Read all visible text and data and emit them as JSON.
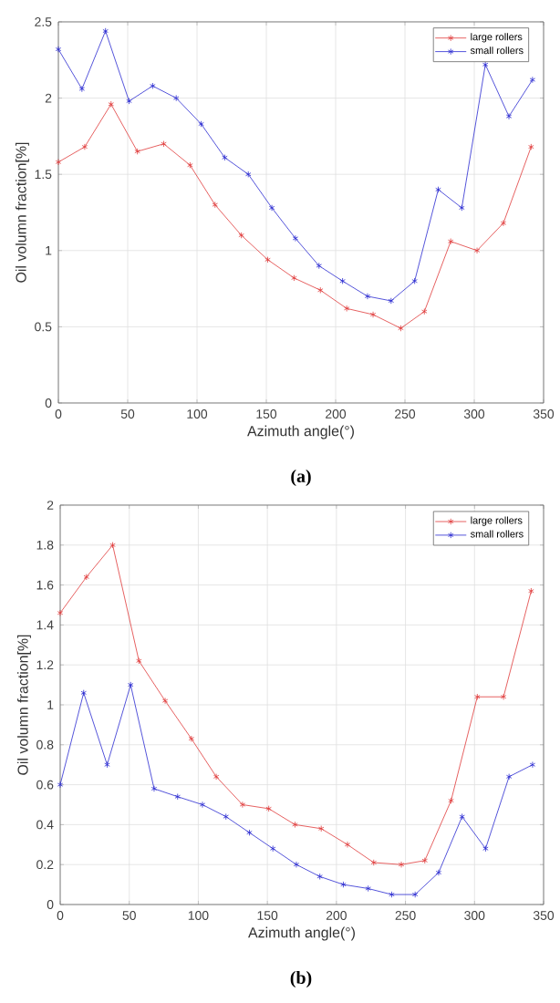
{
  "chart_data": [
    {
      "type": "line",
      "xlabel": "Azimuth angle(°)",
      "ylabel": "Oil volumn fraction[%]",
      "annotations": [
        "(a)"
      ],
      "xlim": [
        0,
        350
      ],
      "ylim": [
        0,
        2.5
      ],
      "xticks": [
        0,
        50,
        100,
        150,
        200,
        250,
        300,
        350
      ],
      "yticks": [
        0,
        0.5,
        1,
        1.5,
        2,
        2.5
      ],
      "grid": true,
      "legend": "top right",
      "marker": "cross",
      "line_style": "solid",
      "series": [
        {
          "name": "large rollers",
          "color": "#e03a3a",
          "x": [
            0,
            19,
            38,
            57,
            76,
            95,
            113,
            132,
            151,
            170,
            189,
            208,
            227,
            247,
            264,
            283,
            302,
            321,
            341
          ],
          "values": [
            1.58,
            1.68,
            1.96,
            1.65,
            1.7,
            1.56,
            1.3,
            1.1,
            0.94,
            0.82,
            0.74,
            0.62,
            0.58,
            0.49,
            0.6,
            1.06,
            1.0,
            1.18,
            1.68
          ]
        },
        {
          "name": "small rollers",
          "color": "#2a2ad0",
          "x": [
            0,
            17,
            34,
            51,
            68,
            85,
            103,
            120,
            137,
            154,
            171,
            188,
            205,
            223,
            240,
            257,
            274,
            291,
            308,
            325,
            342
          ],
          "values": [
            2.32,
            2.06,
            2.44,
            1.98,
            2.08,
            2.0,
            1.83,
            1.61,
            1.5,
            1.28,
            1.08,
            0.9,
            0.8,
            0.7,
            0.67,
            0.8,
            1.4,
            1.28,
            2.22,
            1.88,
            2.12
          ]
        }
      ]
    },
    {
      "type": "line",
      "xlabel": "Azimuth angle(°)",
      "ylabel": "Oil volumn fraction[%]",
      "annotations": [
        "(b)"
      ],
      "xlim": [
        0,
        350
      ],
      "ylim": [
        0,
        2
      ],
      "xticks": [
        0,
        50,
        100,
        150,
        200,
        250,
        300,
        350
      ],
      "yticks": [
        0,
        0.2,
        0.4,
        0.6,
        0.8,
        1,
        1.2,
        1.4,
        1.6,
        1.8,
        2
      ],
      "grid": true,
      "legend": "top right",
      "marker": "cross",
      "line_style": "solid",
      "series": [
        {
          "name": "large rollers",
          "color": "#e03a3a",
          "x": [
            0,
            19,
            38,
            57,
            76,
            95,
            113,
            132,
            151,
            170,
            189,
            208,
            227,
            247,
            264,
            283,
            302,
            321,
            341
          ],
          "values": [
            1.46,
            1.64,
            1.8,
            1.22,
            1.02,
            0.83,
            0.64,
            0.5,
            0.48,
            0.4,
            0.38,
            0.3,
            0.21,
            0.2,
            0.22,
            0.52,
            1.04,
            1.04,
            1.57
          ]
        },
        {
          "name": "small rollers",
          "color": "#2a2ad0",
          "x": [
            0,
            17,
            34,
            51,
            68,
            85,
            103,
            120,
            137,
            154,
            171,
            188,
            205,
            223,
            240,
            257,
            274,
            291,
            308,
            325,
            342
          ],
          "values": [
            0.6,
            1.06,
            0.7,
            1.1,
            0.58,
            0.54,
            0.5,
            0.44,
            0.36,
            0.28,
            0.2,
            0.14,
            0.1,
            0.08,
            0.05,
            0.05,
            0.16,
            0.44,
            0.28,
            0.64,
            0.7
          ]
        }
      ]
    }
  ]
}
